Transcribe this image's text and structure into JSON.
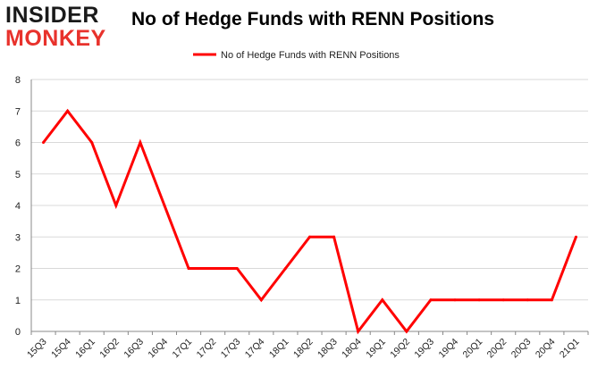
{
  "brand": {
    "line1": "INSIDER",
    "line2": "MONKEY"
  },
  "colors": {
    "series": "#ff0000",
    "grid": "#d9d9d9",
    "axis": "#888888",
    "logo_dark": "#1a1a1a",
    "logo_red": "#e8322c"
  },
  "chart_data": {
    "type": "line",
    "title": "No of Hedge Funds with RENN Positions",
    "xlabel": "",
    "ylabel": "",
    "legend": "top-center",
    "grid": true,
    "ylim": [
      0,
      8
    ],
    "yticks": [
      0,
      1,
      2,
      3,
      4,
      5,
      6,
      7,
      8
    ],
    "categories": [
      "15Q3",
      "15Q4",
      "16Q1",
      "16Q2",
      "16Q3",
      "16Q4",
      "17Q1",
      "17Q2",
      "17Q3",
      "17Q4",
      "18Q1",
      "18Q2",
      "18Q3",
      "18Q4",
      "19Q1",
      "19Q2",
      "19Q3",
      "19Q4",
      "20Q1",
      "20Q2",
      "20Q3",
      "20Q4",
      "21Q1"
    ],
    "series": [
      {
        "name": "No of Hedge Funds with RENN Positions",
        "values": [
          6,
          7,
          6,
          4,
          6,
          4,
          2,
          2,
          2,
          1,
          2,
          3,
          3,
          0,
          1,
          0,
          1,
          1,
          1,
          1,
          1,
          1,
          3
        ]
      }
    ]
  }
}
